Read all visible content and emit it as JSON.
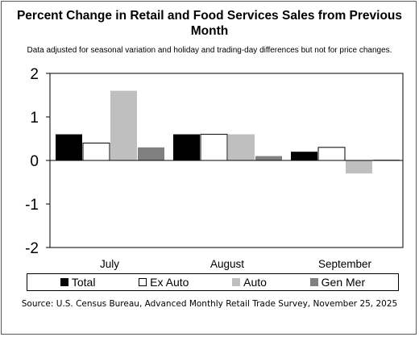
{
  "chart_data": {
    "type": "bar",
    "title": "Percent Change in Retail and Food Services Sales from Previous Month",
    "subtitle": "Data adjusted for seasonal variation and holiday and trading-day differences but not for price changes.",
    "source": "Source: U.S. Census Bureau, Advanced Monthly Retail Trade Survey, November 25, 2025",
    "categories": [
      "July",
      "August",
      "September"
    ],
    "series": [
      {
        "name": "Total",
        "values": [
          0.6,
          0.6,
          0.2
        ],
        "color": "#000000"
      },
      {
        "name": "Ex Auto",
        "values": [
          0.4,
          0.6,
          0.3
        ],
        "color": "#ffffff"
      },
      {
        "name": "Auto",
        "values": [
          1.6,
          0.6,
          -0.3
        ],
        "color": "#bfbfbf"
      },
      {
        "name": "Gen Mer",
        "values": [
          0.3,
          0.1,
          0.0
        ],
        "color": "#808080"
      }
    ],
    "ylim": [
      -2,
      2
    ],
    "yticks": [
      "2",
      "1",
      "0",
      "-1",
      "-2"
    ],
    "ytick_values": [
      2,
      1,
      0,
      -1,
      -2
    ],
    "grid": false,
    "legend_position": "bottom"
  }
}
